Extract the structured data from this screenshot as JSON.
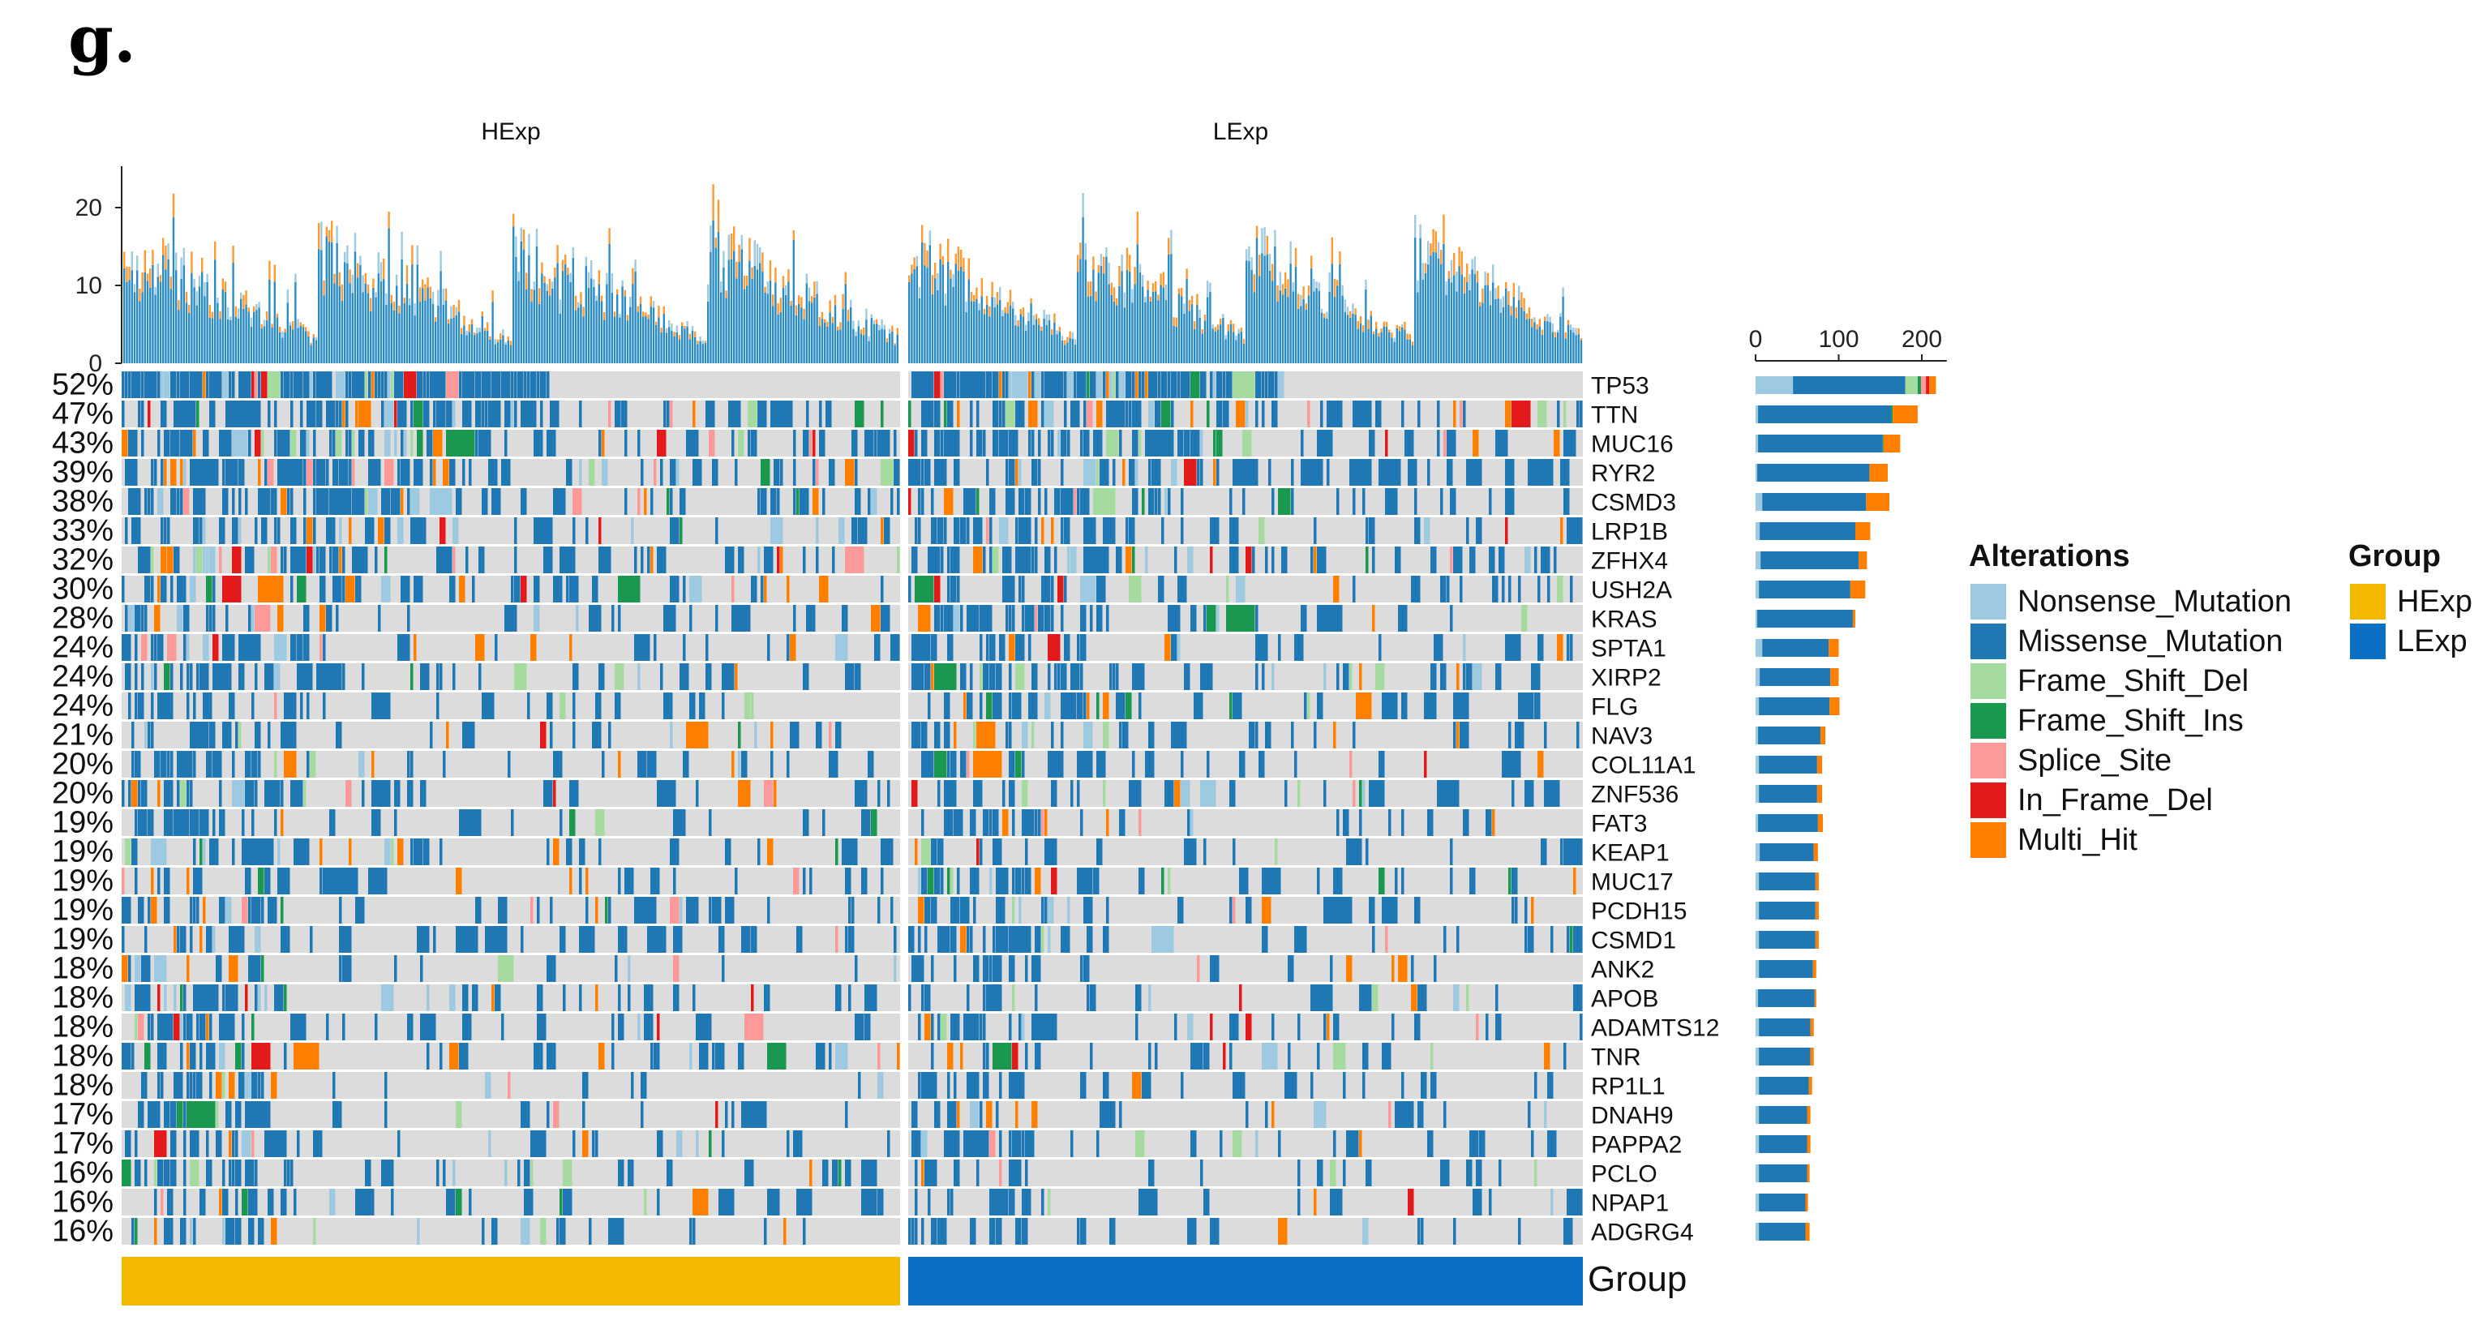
{
  "panel_label": "g.",
  "chart_data": {
    "type": "oncoplot",
    "group_titles": [
      "HExp",
      "LExp"
    ],
    "top_axis_ticks": [
      0,
      10,
      20
    ],
    "top_ylim": [
      0,
      25
    ],
    "genes": [
      {
        "name": "TP53",
        "pct": "52%"
      },
      {
        "name": "TTN",
        "pct": "47%"
      },
      {
        "name": "MUC16",
        "pct": "43%"
      },
      {
        "name": "RYR2",
        "pct": "39%"
      },
      {
        "name": "CSMD3",
        "pct": "38%"
      },
      {
        "name": "LRP1B",
        "pct": "33%"
      },
      {
        "name": "ZFHX4",
        "pct": "32%"
      },
      {
        "name": "USH2A",
        "pct": "30%"
      },
      {
        "name": "KRAS",
        "pct": "28%"
      },
      {
        "name": "SPTA1",
        "pct": "24%"
      },
      {
        "name": "XIRP2",
        "pct": "24%"
      },
      {
        "name": "FLG",
        "pct": "24%"
      },
      {
        "name": "NAV3",
        "pct": "21%"
      },
      {
        "name": "COL11A1",
        "pct": "20%"
      },
      {
        "name": "ZNF536",
        "pct": "20%"
      },
      {
        "name": "FAT3",
        "pct": "19%"
      },
      {
        "name": "KEAP1",
        "pct": "19%"
      },
      {
        "name": "MUC17",
        "pct": "19%"
      },
      {
        "name": "PCDH15",
        "pct": "19%"
      },
      {
        "name": "CSMD1",
        "pct": "19%"
      },
      {
        "name": "ANK2",
        "pct": "18%"
      },
      {
        "name": "APOB",
        "pct": "18%"
      },
      {
        "name": "ADAMTS12",
        "pct": "18%"
      },
      {
        "name": "TNR",
        "pct": "18%"
      },
      {
        "name": "RP1L1",
        "pct": "18%"
      },
      {
        "name": "DNAH9",
        "pct": "17%"
      },
      {
        "name": "PAPPA2",
        "pct": "17%"
      },
      {
        "name": "PCLO",
        "pct": "16%"
      },
      {
        "name": "NPAP1",
        "pct": "16%"
      },
      {
        "name": "ADGRG4",
        "pct": "16%"
      }
    ],
    "side_bar_ticks": [
      0,
      100,
      200
    ],
    "side_bar_xlim": [
      0,
      230
    ],
    "side_bar_series": [
      "Nonsense_Mutation",
      "Missense_Mutation",
      "Frame_Shift_Del",
      "Frame_Shift_Ins",
      "Splice_Site",
      "In_Frame_Del",
      "Multi_Hit"
    ],
    "side_bar_values": [
      [
        45,
        135,
        15,
        4,
        6,
        4,
        8
      ],
      [
        3,
        160,
        0,
        2,
        0,
        0,
        30
      ],
      [
        3,
        150,
        0,
        1,
        0,
        0,
        20
      ],
      [
        2,
        135,
        0,
        0,
        0,
        0,
        22
      ],
      [
        8,
        125,
        0,
        0,
        0,
        0,
        28
      ],
      [
        5,
        115,
        0,
        0,
        0,
        0,
        18
      ],
      [
        6,
        118,
        0,
        0,
        0,
        0,
        10
      ],
      [
        4,
        110,
        0,
        0,
        0,
        0,
        18
      ],
      [
        2,
        115,
        0,
        0,
        0,
        0,
        3
      ],
      [
        8,
        80,
        0,
        0,
        0,
        0,
        12
      ],
      [
        5,
        85,
        0,
        0,
        0,
        0,
        10
      ],
      [
        4,
        85,
        0,
        0,
        0,
        0,
        12
      ],
      [
        3,
        75,
        0,
        0,
        0,
        0,
        6
      ],
      [
        4,
        70,
        0,
        0,
        0,
        0,
        6
      ],
      [
        4,
        70,
        0,
        0,
        0,
        0,
        6
      ],
      [
        3,
        72,
        0,
        0,
        0,
        0,
        6
      ],
      [
        5,
        65,
        0,
        0,
        0,
        0,
        5
      ],
      [
        4,
        68,
        0,
        0,
        0,
        0,
        4
      ],
      [
        4,
        68,
        0,
        0,
        0,
        0,
        4
      ],
      [
        4,
        68,
        0,
        0,
        0,
        0,
        4
      ],
      [
        4,
        65,
        0,
        0,
        0,
        0,
        4
      ],
      [
        3,
        68,
        0,
        0,
        0,
        0,
        2
      ],
      [
        4,
        62,
        0,
        0,
        0,
        0,
        4
      ],
      [
        4,
        62,
        0,
        0,
        0,
        0,
        4
      ],
      [
        4,
        60,
        0,
        0,
        0,
        0,
        4
      ],
      [
        4,
        58,
        0,
        0,
        0,
        0,
        4
      ],
      [
        4,
        58,
        0,
        0,
        0,
        0,
        4
      ],
      [
        4,
        58,
        0,
        0,
        0,
        0,
        3
      ],
      [
        4,
        56,
        0,
        0,
        0,
        0,
        3
      ],
      [
        4,
        56,
        0,
        0,
        0,
        0,
        5
      ]
    ],
    "legend_alterations_title": "Alterations",
    "legend_alterations": [
      {
        "label": "Nonsense_Mutation",
        "color": "#9ecae1"
      },
      {
        "label": "Missense_Mutation",
        "color": "#1f78b4"
      },
      {
        "label": "Frame_Shift_Del",
        "color": "#a6dba0"
      },
      {
        "label": "Frame_Shift_Ins",
        "color": "#1a9850"
      },
      {
        "label": "Splice_Site",
        "color": "#fb9a99"
      },
      {
        "label": "In_Frame_Del",
        "color": "#e31a1c"
      },
      {
        "label": "Multi_Hit",
        "color": "#ff7f00"
      }
    ],
    "legend_group_title": "Group",
    "legend_groups": [
      {
        "label": "HExp",
        "color": "#f5b800"
      },
      {
        "label": "LExp",
        "color": "#0b6fc4"
      }
    ],
    "group_bar_label": "Group"
  }
}
